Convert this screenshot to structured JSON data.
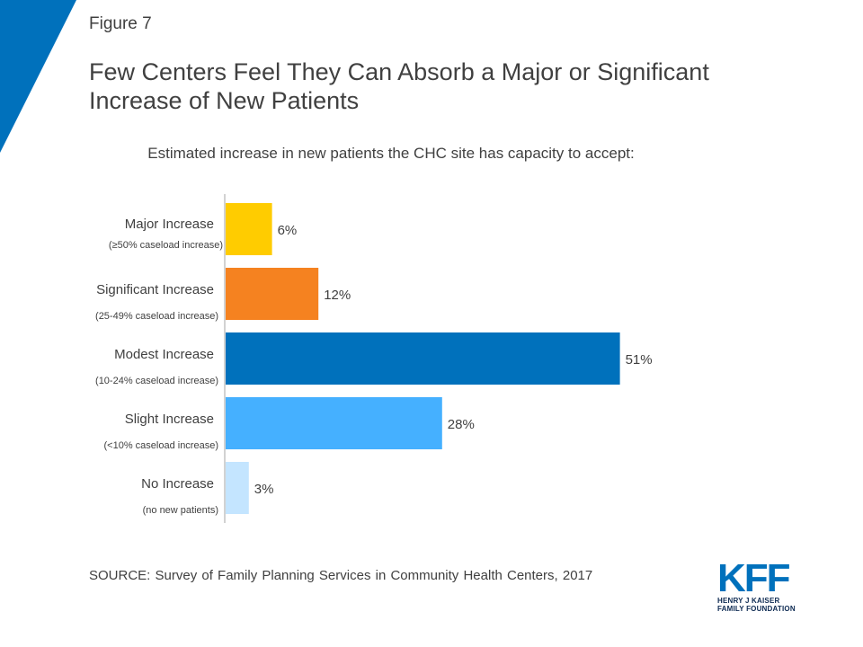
{
  "figure_label": "Figure 7",
  "title": "Few Centers Feel They Can Absorb a Major or Significant Increase of New Patients",
  "colors": {
    "accent_corner": "#0071bc",
    "text": "#404040",
    "axis": "#a6a6a6"
  },
  "chart_data": {
    "type": "bar",
    "orientation": "horizontal",
    "title": "Estimated increase in new patients the CHC site has capacity to accept:",
    "categories": [
      {
        "label": "Major Increase",
        "sublabel": "(≥50% caseload increase)"
      },
      {
        "label": "Significant Increase",
        "sublabel": "(25-49% caseload increase)"
      },
      {
        "label": "Modest Increase",
        "sublabel": "(10-24% caseload increase)"
      },
      {
        "label": "Slight Increase",
        "sublabel": "(<10% caseload increase)"
      },
      {
        "label": "No Increase",
        "sublabel": "(no new patients)"
      }
    ],
    "values": [
      6,
      12,
      51,
      28,
      3
    ],
    "value_labels": [
      "6%",
      "12%",
      "51%",
      "28%",
      "3%"
    ],
    "bar_colors": [
      "#ffcc00",
      "#f58220",
      "#0071bc",
      "#45b0ff",
      "#c4e5ff"
    ],
    "xlim": [
      0,
      100
    ],
    "grid": false,
    "legend": "none"
  },
  "source": "SOURCE: Survey of Family Planning Services in Community Health Centers, 2017",
  "logo": {
    "mark": "KFF",
    "line1": "HENRY J KAISER",
    "line2": "FAMILY FOUNDATION"
  }
}
